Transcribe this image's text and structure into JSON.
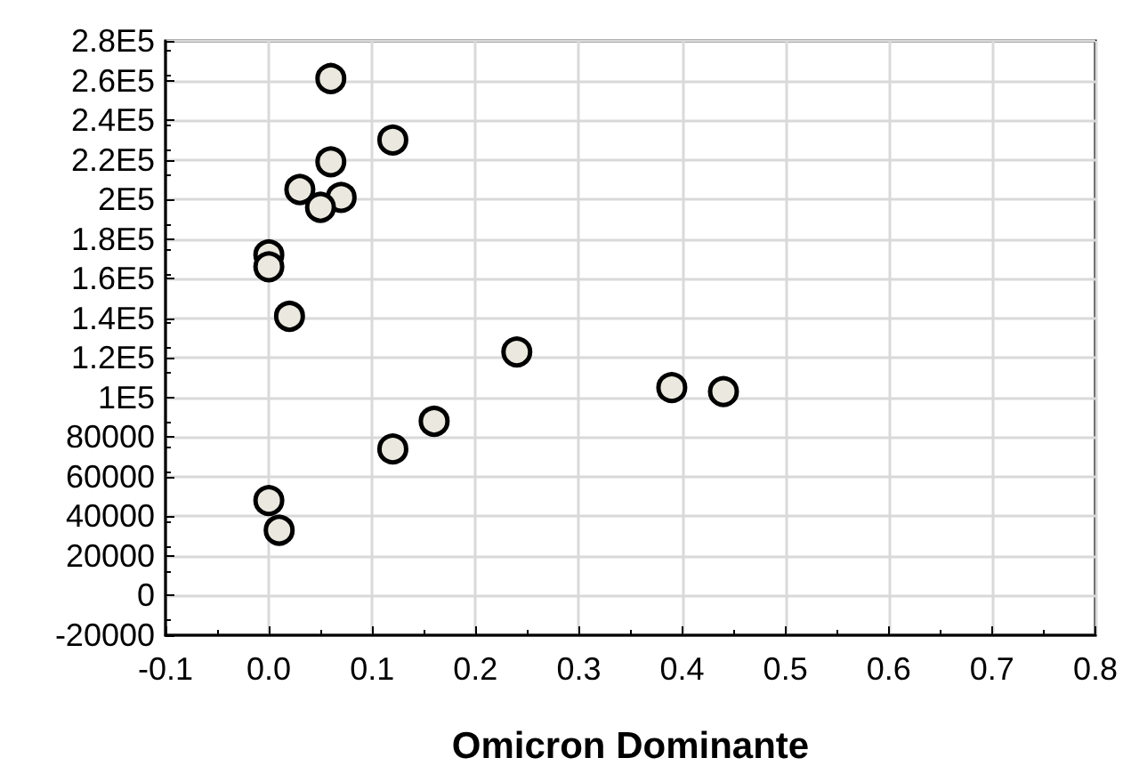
{
  "chart_data": {
    "type": "scatter",
    "xlabel": "Omicron Dominante",
    "x": [
      0.06,
      0.12,
      0.06,
      0.03,
      0.07,
      0.05,
      0.0,
      0.0,
      0.02,
      0.24,
      0.39,
      0.44,
      0.16,
      0.12,
      0.0,
      0.01
    ],
    "series": [
      {
        "color": "#ebe9df",
        "values": [
          261000,
          230000,
          219000,
          205000,
          201000,
          196000,
          172000,
          166000,
          141000,
          123000,
          105000,
          103000,
          88000,
          74000,
          48000,
          33000
        ]
      }
    ],
    "xlim": [
      -0.1,
      0.8
    ],
    "xticks": [
      -0.1,
      {
        "value": 0,
        "label": "0.0"
      },
      0.1,
      0.2,
      0.3,
      0.4,
      0.5,
      0.6,
      0.7,
      0.8
    ],
    "ylim": [
      -20000,
      280000
    ],
    "yticks": [
      -20000,
      0,
      20000,
      40000,
      60000,
      80000,
      {
        "value": 100000,
        "label": "1E5"
      },
      {
        "value": 120000,
        "label": "1.2E5"
      },
      {
        "value": 140000,
        "label": "1.4E5"
      },
      {
        "value": 160000,
        "label": "1.6E5"
      },
      {
        "value": 180000,
        "label": "1.8E5"
      },
      {
        "value": 200000,
        "label": "2E5"
      },
      {
        "value": 220000,
        "label": "2.2E5"
      },
      {
        "value": 240000,
        "label": "2.4E5"
      },
      {
        "value": 260000,
        "label": "2.6E5"
      },
      {
        "value": 280000,
        "label": "2.8E5"
      }
    ],
    "grid": true,
    "marker": "circle"
  }
}
